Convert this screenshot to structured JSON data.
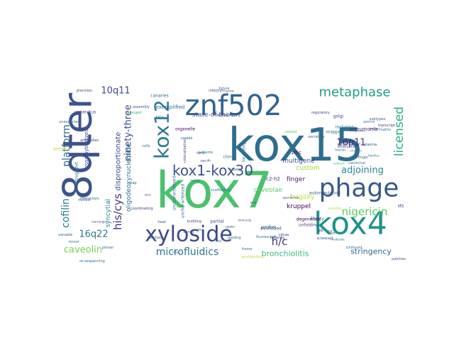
{
  "words": [
    {
      "text": "kox15",
      "color": "#2d6e8e"
    },
    {
      "text": "kox7",
      "color": "#4ac16d"
    },
    {
      "text": "8qter",
      "color": "#3b528b"
    },
    {
      "text": "znf502",
      "color": "#33638d"
    },
    {
      "text": "kox4",
      "color": "#21918c"
    },
    {
      "text": "phage",
      "color": "#38598c"
    },
    {
      "text": "xyloside",
      "color": "#3e4989"
    },
    {
      "text": "kox1-kox30",
      "color": "#3b528b"
    },
    {
      "text": "kox12",
      "color": "#2a788e"
    },
    {
      "text": "metaphase",
      "color": "#1f9e89"
    },
    {
      "text": "licensed",
      "color": "#2ab07f"
    },
    {
      "text": "cofilin",
      "color": "#287d8e"
    },
    {
      "text": "platform",
      "color": "#31688e"
    },
    {
      "text": "nigericin",
      "color": "#5ec962"
    },
    {
      "text": "microfluidics",
      "color": "#2c728e"
    },
    {
      "text": "ninety-three",
      "color": "#3e4a89"
    },
    {
      "text": "adjoining",
      "color": "#26828e"
    },
    {
      "text": "caveolin",
      "color": "#7ad151"
    },
    {
      "text": "his/cys",
      "color": "#472f7d"
    },
    {
      "text": "16q22",
      "color": "#2a788e"
    },
    {
      "text": "10q11",
      "color": "#3f4889"
    },
    {
      "text": "16p11",
      "color": "#482878"
    },
    {
      "text": "h/c",
      "color": "#46327e"
    },
    {
      "text": "bronchiolitis",
      "color": "#35b779"
    },
    {
      "text": "stringency",
      "color": "#31688e"
    },
    {
      "text": "disproportionate",
      "color": "#3e4989"
    },
    {
      "text": "syncytial",
      "color": "#26828e"
    },
    {
      "text": "custom",
      "color": "#a0da39"
    },
    {
      "text": "fragility",
      "color": "#bddf26"
    },
    {
      "text": "kruppel",
      "color": "#440154"
    },
    {
      "text": "multigene",
      "color": "#3b528b"
    },
    {
      "text": "caveolae",
      "color": "#5ec962"
    },
    {
      "text": "finger",
      "color": "#482071"
    },
    {
      "text": "state-of-the-art",
      "color": "#3b528b"
    },
    {
      "text": "oligodeoxynucleotide",
      "color": "#2c728e"
    },
    {
      "text": "cross-hybridized",
      "color": "#3e4a89"
    },
    {
      "text": "throughput",
      "color": "#2a788e"
    },
    {
      "text": "pneumonia",
      "color": "#472f7d"
    },
    {
      "text": "zinc",
      "color": "#440154"
    },
    {
      "text": "c2-h2",
      "color": "#46327e"
    },
    {
      "text": "probe",
      "color": "#31688e"
    },
    {
      "text": "exemplified",
      "color": "#31688e"
    },
    {
      "text": "sorted",
      "color": "#b5de2b"
    },
    {
      "text": "nucleic",
      "color": "#38598c"
    },
    {
      "text": "interactors",
      "color": "#33638d"
    },
    {
      "text": "library",
      "color": "#31688e"
    },
    {
      "text": "unfolding",
      "color": "#3e4a89"
    },
    {
      "text": "degenerate",
      "color": "#440154"
    },
    {
      "text": "sts",
      "color": "#46327e"
    },
    {
      "text": "misfolded",
      "color": "#3b528b"
    },
    {
      "text": "infants",
      "color": "#3e4989"
    },
    {
      "text": "rsv",
      "color": "#2a788e"
    },
    {
      "text": "organelle",
      "color": "#440154"
    },
    {
      "text": "uncharacterised",
      "color": "#2c728e"
    },
    {
      "text": "uncharacterized",
      "color": "#31688e"
    },
    {
      "text": "budding",
      "color": "#3b528b"
    },
    {
      "text": "situ",
      "color": "#2a788e"
    },
    {
      "text": "partial",
      "color": "#3e4989"
    },
    {
      "text": "localizing",
      "color": "#31688e"
    },
    {
      "text": "golgi",
      "color": "#443a83"
    },
    {
      "text": "inclusion",
      "color": "#31688e"
    },
    {
      "text": "mapped",
      "color": "#2a788e"
    },
    {
      "text": "autoregulation",
      "color": "#3b528b"
    },
    {
      "text": "telomeric",
      "color": "#3e4989"
    },
    {
      "text": "clones",
      "color": "#2c728e"
    },
    {
      "text": "elderly",
      "color": "#31688e"
    },
    {
      "text": "apparatus",
      "color": "#3e4a89"
    },
    {
      "text": "belonged",
      "color": "#35b779"
    },
    {
      "text": "bands",
      "color": "#3b528b"
    },
    {
      "text": "fluorescent",
      "color": "#2a788e"
    },
    {
      "text": "cdnas",
      "color": "#3e4989"
    },
    {
      "text": "primer",
      "color": "#31688e"
    },
    {
      "text": "ichthyoid",
      "color": "#31688e"
    },
    {
      "text": "colocalization",
      "color": "#443a83"
    },
    {
      "text": "amplification",
      "color": "#3b528b"
    },
    {
      "text": "clusters",
      "color": "#2c728e"
    },
    {
      "text": "nested",
      "color": "#5ec962"
    },
    {
      "text": "zinc-finger",
      "color": "#31688e"
    },
    {
      "text": "precision",
      "color": "#3e4989"
    },
    {
      "text": "screened",
      "color": "#3b528b"
    },
    {
      "text": "scaffolding",
      "color": "#2a788e"
    },
    {
      "text": "transcript",
      "color": "#443a83"
    },
    {
      "text": "repressor",
      "color": "#31688e"
    },
    {
      "text": "assembly",
      "color": "#3b528b"
    },
    {
      "text": "regions",
      "color": "#3e4989"
    },
    {
      "text": "matrix",
      "color": "#2c728e"
    },
    {
      "text": "fraction",
      "color": "#3b528b"
    },
    {
      "text": "cultures",
      "color": "#35b779"
    },
    {
      "text": "antibodies",
      "color": "#3e4989"
    },
    {
      "text": "families",
      "color": "#2a788e"
    },
    {
      "text": "secretory",
      "color": "#31688e"
    },
    {
      "text": "plasma",
      "color": "#3b528b"
    },
    {
      "text": "vesicles",
      "color": "#bddf26"
    },
    {
      "text": "embryonic",
      "color": "#3e4989"
    },
    {
      "text": "variable",
      "color": "#31688e"
    },
    {
      "text": "unexpected",
      "color": "#2c728e"
    },
    {
      "text": "coordinating",
      "color": "#443a83"
    },
    {
      "text": "patches",
      "color": "#3b528b"
    },
    {
      "text": "canaries",
      "color": "#31688e"
    },
    {
      "text": "infection",
      "color": "#3e4989"
    },
    {
      "text": "cells",
      "color": "#2a788e"
    },
    {
      "text": "rearranged",
      "color": "#3b528b"
    },
    {
      "text": "deleted",
      "color": "#31688e"
    },
    {
      "text": "junction",
      "color": "#3e4989"
    },
    {
      "text": "reading",
      "color": "#2c728e"
    },
    {
      "text": "spectral",
      "color": "#3b528b"
    },
    {
      "text": "lab",
      "color": "#443a83"
    },
    {
      "text": "ice",
      "color": "#31688e"
    },
    {
      "text": "sort",
      "color": "#3e4989"
    },
    {
      "text": "moderate",
      "color": "#2a788e"
    },
    {
      "text": "heat",
      "color": "#3b528b"
    },
    {
      "text": "drug",
      "color": "#31688e"
    },
    {
      "text": "coat",
      "color": "#3e4989"
    },
    {
      "text": "frame",
      "color": "#2c728e"
    },
    {
      "text": "host",
      "color": "#3b528b"
    },
    {
      "text": "pap",
      "color": "#31688e"
    },
    {
      "text": "sera",
      "color": "#3e4989"
    },
    {
      "text": "twice",
      "color": "#2a788e"
    },
    {
      "text": "family",
      "color": "#3b528b"
    },
    {
      "text": "unable",
      "color": "#31688e"
    },
    {
      "text": "specific",
      "color": "#3e4989"
    },
    {
      "text": "patients",
      "color": "#2c728e"
    },
    {
      "text": "uptake",
      "color": "#3b528b"
    },
    {
      "text": "future",
      "color": "#31688e"
    },
    {
      "text": "narrow",
      "color": "#3e4989"
    },
    {
      "text": "acid-binding",
      "color": "#b5de2b"
    },
    {
      "text": "approaches",
      "color": "#3b528b"
    },
    {
      "text": "subtypes",
      "color": "#31688e"
    },
    {
      "text": "probes",
      "color": "#3e4989"
    },
    {
      "text": "canonical",
      "color": "#2a788e"
    },
    {
      "text": "immunity",
      "color": "#3b528b"
    },
    {
      "text": "re-sequencing",
      "color": "#31688e"
    },
    {
      "text": "regulatory",
      "color": "#3e4989"
    }
  ]
}
